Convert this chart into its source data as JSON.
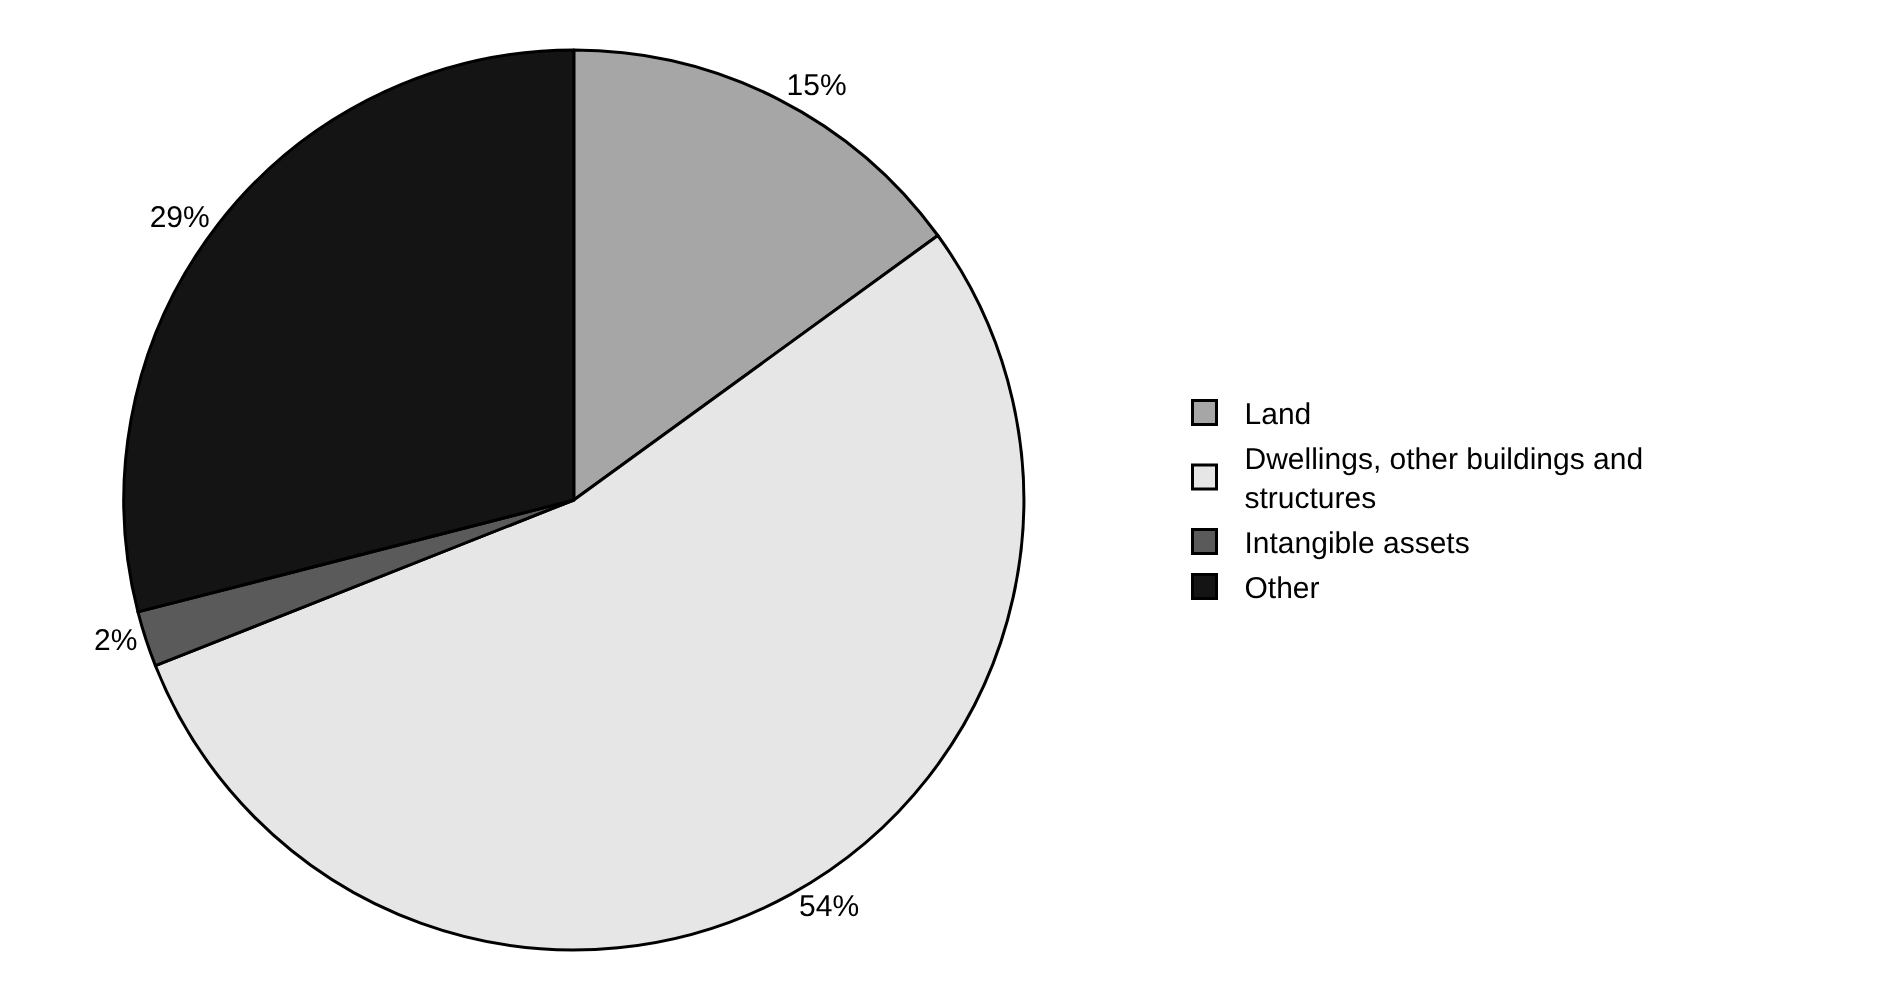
{
  "chart_data": {
    "type": "pie",
    "categories": [
      "Land",
      "Dwellings, other buildings and structures",
      "Intangible assets",
      "Other"
    ],
    "values": [
      15,
      54,
      2,
      29
    ],
    "value_labels": [
      "15%",
      "54%",
      "2%",
      "29%"
    ],
    "colors": [
      "#a6a6a6",
      "#e6e6e6",
      "#5a5a5a",
      "#141414"
    ],
    "legend": "right"
  }
}
